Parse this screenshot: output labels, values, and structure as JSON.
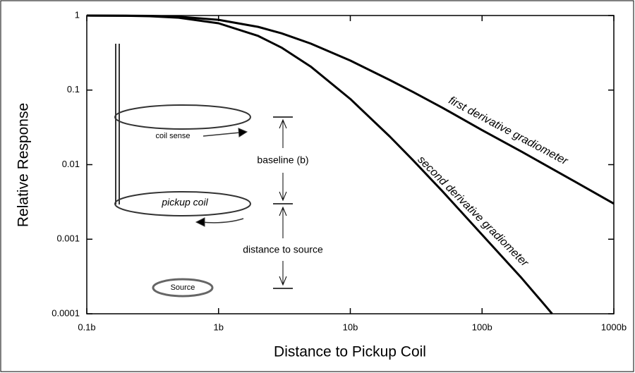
{
  "chart_data": {
    "type": "line",
    "xlabel": "Distance to Pickup Coil",
    "ylabel": "Relative Response",
    "xscale": "log",
    "yscale": "log",
    "xlim": [
      0.1,
      1000
    ],
    "ylim": [
      0.0001,
      1
    ],
    "xticks": [
      {
        "value": 0.1,
        "label": "0.1b"
      },
      {
        "value": 1,
        "label": "1b"
      },
      {
        "value": 10,
        "label": "10b"
      },
      {
        "value": 100,
        "label": "100b"
      },
      {
        "value": 1000,
        "label": "1000b"
      }
    ],
    "yticks": [
      0.0001,
      0.001,
      0.01,
      0.1,
      1
    ],
    "series": [
      {
        "name": "first derivative gradiometer",
        "color": "#000000",
        "x": [
          0.1,
          0.2,
          0.3,
          0.5,
          1,
          2,
          3,
          5,
          10,
          20,
          30,
          50,
          100,
          200,
          300,
          500,
          1000
        ],
        "values": [
          0.999,
          0.995,
          0.988,
          0.963,
          0.875,
          0.704,
          0.578,
          0.421,
          0.249,
          0.136,
          0.094,
          0.058,
          0.029,
          0.0149,
          0.00995,
          0.006,
          0.003
        ]
      },
      {
        "name": "second derivative gradiometer",
        "color": "#000000",
        "x": [
          0.1,
          0.2,
          0.3,
          0.5,
          1,
          2,
          3,
          5,
          10,
          20,
          30,
          50,
          100,
          200,
          300,
          340
        ],
        "values": [
          0.9986,
          0.9915,
          0.978,
          0.934,
          0.787,
          0.532,
          0.372,
          0.207,
          0.076,
          0.0237,
          0.0114,
          0.0044,
          0.00115,
          0.0003,
          0.00013,
          0.0001
        ]
      }
    ],
    "annotations": [
      "coil sense",
      "baseline (b)",
      "pickup coil",
      "distance to source",
      "Source"
    ]
  }
}
